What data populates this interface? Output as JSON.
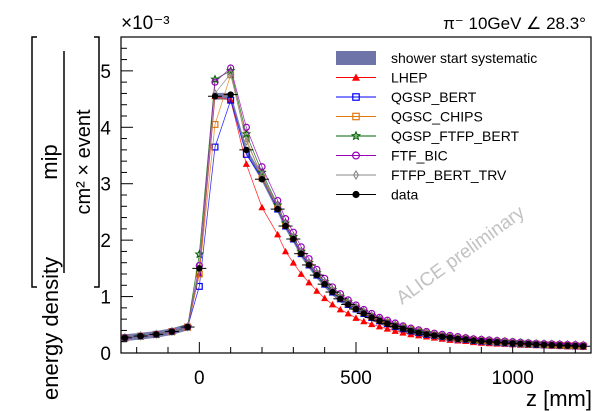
{
  "chart_data": {
    "type": "line",
    "title": "",
    "run_label": "π⁻ 10GeV ∠ 28.3°",
    "y_multiplier": "×10⁻³",
    "xlabel": "z [mm]",
    "ylabel": "energy density",
    "ylabel_fraction": {
      "numerator": "mip",
      "denominator": "cm² × event"
    },
    "watermark": "ALICE preliminary",
    "xlim": [
      -250,
      1250
    ],
    "ylim": [
      0,
      5.6
    ],
    "x_ticks": [
      0,
      500,
      1000
    ],
    "x_tick_labels": [
      "0",
      "500",
      "1000"
    ],
    "y_ticks": [
      0,
      1,
      2,
      3,
      4,
      5
    ],
    "y_tick_labels": [
      "0",
      "1",
      "2",
      "3",
      "4",
      "5"
    ],
    "grid": false,
    "legend_position": "top-right",
    "x": [
      -237.5,
      -187.5,
      -137.5,
      -87.5,
      -37.5,
      0,
      50,
      100,
      150,
      200,
      250,
      275,
      300,
      325,
      350,
      375,
      400,
      425,
      450,
      475,
      500,
      525,
      550,
      575,
      600,
      625,
      650,
      675,
      700,
      725,
      750,
      775,
      800,
      825,
      850,
      875,
      900,
      925,
      950,
      975,
      1000,
      1025,
      1050,
      1075,
      1100,
      1125,
      1150,
      1175,
      1200,
      1225
    ],
    "series": [
      {
        "name": "shower start systematic",
        "kind": "band",
        "color": "#6e74a8",
        "values": [
          0.27,
          0.3,
          0.33,
          0.38,
          0.46,
          1.45,
          4.55,
          4.55,
          3.58,
          3.1,
          2.55,
          2.25,
          2.02,
          1.76,
          1.56,
          1.38,
          1.22,
          1.08,
          0.96,
          0.86,
          0.78,
          0.7,
          0.63,
          0.57,
          0.52,
          0.47,
          0.43,
          0.39,
          0.36,
          0.33,
          0.31,
          0.29,
          0.27,
          0.25,
          0.24,
          0.22,
          0.21,
          0.2,
          0.19,
          0.18,
          0.17,
          0.165,
          0.16,
          0.15,
          0.145,
          0.14,
          0.135,
          0.13,
          0.125,
          0.12
        ],
        "spread": 0.06
      },
      {
        "name": "LHEP",
        "marker": "triangle",
        "color": "#ff0000",
        "values": [
          0.27,
          0.3,
          0.33,
          0.38,
          0.46,
          1.4,
          4.55,
          4.48,
          3.35,
          2.58,
          2.1,
          1.8,
          1.6,
          1.4,
          1.25,
          1.1,
          0.97,
          0.86,
          0.77,
          0.7,
          0.62,
          0.56,
          0.51,
          0.47,
          0.43,
          0.39,
          0.36,
          0.33,
          0.31,
          0.29,
          0.27,
          0.25,
          0.23,
          0.22,
          0.21,
          0.19,
          0.18,
          0.17,
          0.165,
          0.16,
          0.15,
          0.145,
          0.14,
          0.135,
          0.13,
          0.125,
          0.12,
          0.115,
          0.11,
          0.105
        ]
      },
      {
        "name": "QGSP_BERT",
        "marker": "square",
        "color": "#0000ff",
        "values": [
          0.27,
          0.3,
          0.33,
          0.38,
          0.46,
          1.18,
          3.65,
          4.48,
          3.52,
          3.1,
          2.55,
          2.25,
          2.02,
          1.76,
          1.56,
          1.38,
          1.22,
          1.08,
          0.96,
          0.86,
          0.78,
          0.7,
          0.63,
          0.57,
          0.52,
          0.47,
          0.43,
          0.39,
          0.36,
          0.33,
          0.31,
          0.29,
          0.27,
          0.25,
          0.24,
          0.22,
          0.21,
          0.2,
          0.19,
          0.18,
          0.17,
          0.165,
          0.16,
          0.15,
          0.145,
          0.14,
          0.135,
          0.13,
          0.125,
          0.12
        ]
      },
      {
        "name": "QGSC_CHIPS",
        "marker": "square",
        "color": "#e07810",
        "values": [
          0.27,
          0.3,
          0.33,
          0.38,
          0.46,
          1.4,
          4.05,
          4.93,
          3.8,
          3.1,
          2.58,
          2.27,
          2.04,
          1.78,
          1.58,
          1.4,
          1.24,
          1.1,
          0.98,
          0.88,
          0.8,
          0.72,
          0.65,
          0.59,
          0.54,
          0.49,
          0.45,
          0.41,
          0.38,
          0.35,
          0.32,
          0.3,
          0.28,
          0.26,
          0.25,
          0.23,
          0.22,
          0.21,
          0.2,
          0.19,
          0.18,
          0.17,
          0.165,
          0.16,
          0.15,
          0.145,
          0.14,
          0.135,
          0.13,
          0.125
        ]
      },
      {
        "name": "QGSP_FTFP_BERT",
        "marker": "star",
        "color": "#006400",
        "values": [
          0.27,
          0.3,
          0.33,
          0.38,
          0.46,
          1.75,
          4.85,
          5.0,
          3.88,
          3.2,
          2.62,
          2.3,
          2.06,
          1.8,
          1.6,
          1.42,
          1.26,
          1.12,
          1.0,
          0.9,
          0.81,
          0.73,
          0.66,
          0.6,
          0.55,
          0.5,
          0.46,
          0.42,
          0.39,
          0.36,
          0.33,
          0.31,
          0.29,
          0.27,
          0.26,
          0.24,
          0.23,
          0.22,
          0.21,
          0.2,
          0.19,
          0.18,
          0.17,
          0.165,
          0.16,
          0.155,
          0.15,
          0.145,
          0.14,
          0.135
        ]
      },
      {
        "name": "FTF_BIC",
        "marker": "circle",
        "color": "#9900bb",
        "values": [
          0.27,
          0.3,
          0.33,
          0.38,
          0.46,
          1.55,
          4.8,
          5.05,
          4.0,
          3.3,
          2.7,
          2.38,
          2.14,
          1.88,
          1.67,
          1.48,
          1.32,
          1.17,
          1.05,
          0.94,
          0.85,
          0.77,
          0.7,
          0.63,
          0.58,
          0.53,
          0.48,
          0.44,
          0.41,
          0.38,
          0.35,
          0.33,
          0.31,
          0.29,
          0.27,
          0.25,
          0.24,
          0.23,
          0.22,
          0.21,
          0.2,
          0.19,
          0.18,
          0.17,
          0.165,
          0.16,
          0.155,
          0.15,
          0.145,
          0.14
        ]
      },
      {
        "name": "FTFP_BERT_TRV",
        "marker": "diamond",
        "color": "#888888",
        "values": [
          0.27,
          0.3,
          0.33,
          0.38,
          0.46,
          1.5,
          4.6,
          4.95,
          3.75,
          3.15,
          2.6,
          2.28,
          2.05,
          1.79,
          1.59,
          1.41,
          1.25,
          1.11,
          0.99,
          0.89,
          0.8,
          0.72,
          0.65,
          0.59,
          0.54,
          0.49,
          0.45,
          0.41,
          0.38,
          0.35,
          0.32,
          0.3,
          0.28,
          0.26,
          0.25,
          0.23,
          0.22,
          0.21,
          0.2,
          0.19,
          0.18,
          0.17,
          0.165,
          0.16,
          0.15,
          0.145,
          0.14,
          0.135,
          0.13,
          0.125
        ]
      },
      {
        "name": "data",
        "marker": "dot",
        "color": "#000000",
        "values": [
          0.27,
          0.3,
          0.33,
          0.38,
          0.46,
          1.5,
          4.55,
          4.58,
          3.6,
          3.08,
          2.55,
          2.25,
          2.02,
          1.76,
          1.56,
          1.38,
          1.22,
          1.08,
          0.96,
          0.86,
          0.78,
          0.7,
          0.63,
          0.57,
          0.52,
          0.47,
          0.43,
          0.39,
          0.36,
          0.33,
          0.31,
          0.29,
          0.27,
          0.25,
          0.24,
          0.22,
          0.21,
          0.2,
          0.19,
          0.18,
          0.17,
          0.165,
          0.16,
          0.15,
          0.145,
          0.14,
          0.135,
          0.13,
          0.125,
          0.12
        ]
      }
    ]
  }
}
